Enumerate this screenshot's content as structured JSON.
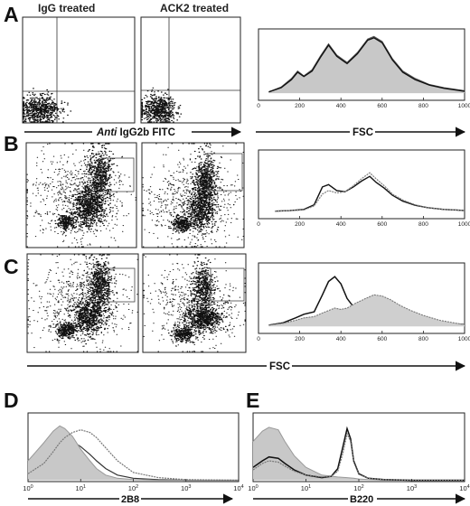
{
  "figure": {
    "panel_letters": [
      "A",
      "B",
      "C",
      "D",
      "E"
    ],
    "row_a": {
      "plot_titles": [
        "IgG treated",
        "ACK2 treated"
      ],
      "dotplot_axis_label_italic": "Anti",
      "dotplot_axis_label_rest": " IgG2b FITC",
      "histogram_axis_label": "FSC"
    },
    "row_c": {
      "axis_label": "FSC"
    },
    "fsc_ticks": [
      "0",
      "200",
      "400",
      "600",
      "800",
      "1000"
    ],
    "panel_d": {
      "xlabel": "2B8"
    },
    "panel_e": {
      "xlabel": "B220"
    },
    "log_ticks_base": "10",
    "log_ticks_exp": [
      "0",
      "1",
      "2",
      "3",
      "4"
    ]
  },
  "chart_data": [
    {
      "panel": "A",
      "type": "scatter",
      "title": "IgG treated",
      "xlabel": "Anti IgG2b FITC",
      "note": "events concentrated in lower-left quadrant"
    },
    {
      "panel": "A",
      "type": "scatter",
      "title": "ACK2 treated",
      "xlabel": "Anti IgG2b FITC",
      "note": "events concentrated in lower-left quadrant"
    },
    {
      "panel": "A",
      "type": "area",
      "xlabel": "FSC",
      "x_ticks": [
        0,
        200,
        400,
        600,
        800,
        1000
      ],
      "xlim": [
        0,
        1000
      ],
      "series": [
        {
          "x": [
            50,
            110,
            160,
            190,
            220,
            260,
            300,
            340,
            380,
            430,
            480,
            530,
            560,
            600,
            650,
            700,
            760,
            830,
            900,
            960,
            1000
          ],
          "values": [
            2,
            10,
            24,
            36,
            28,
            38,
            60,
            80,
            62,
            50,
            66,
            88,
            92,
            84,
            56,
            36,
            24,
            14,
            9,
            6,
            4
          ]
        },
        {
          "x": [
            50,
            110,
            160,
            190,
            220,
            260,
            300,
            340,
            380,
            430,
            480,
            530,
            560,
            600,
            650,
            700,
            760,
            830,
            900,
            960,
            1000
          ],
          "values": [
            2,
            9,
            22,
            34,
            27,
            36,
            58,
            78,
            60,
            48,
            64,
            86,
            90,
            82,
            54,
            34,
            22,
            13,
            8,
            5,
            3
          ]
        }
      ]
    },
    {
      "panel": "B",
      "type": "scatter",
      "note": "FSC vs fluorescence, gated rectangle upper-right"
    },
    {
      "panel": "B",
      "type": "scatter",
      "note": "FSC vs fluorescence, gated rectangle upper-right"
    },
    {
      "panel": "B",
      "type": "line",
      "x_ticks": [
        0,
        200,
        400,
        600,
        800,
        1000
      ],
      "xlim": [
        0,
        1000
      ],
      "series": [
        {
          "x": [
            80,
            150,
            220,
            270,
            310,
            340,
            380,
            420,
            460,
            500,
            540,
            570,
            610,
            650,
            700,
            760,
            820,
            900,
            960,
            1000
          ],
          "values": [
            1,
            2,
            4,
            12,
            42,
            46,
            36,
            34,
            42,
            52,
            60,
            50,
            40,
            28,
            18,
            11,
            7,
            4,
            3,
            2
          ]
        },
        {
          "x": [
            80,
            150,
            220,
            270,
            310,
            340,
            380,
            420,
            460,
            500,
            540,
            570,
            610,
            650,
            700,
            760,
            820,
            900,
            960,
            1000
          ],
          "values": [
            1,
            2,
            3,
            10,
            30,
            36,
            32,
            34,
            44,
            56,
            66,
            56,
            44,
            30,
            20,
            12,
            7,
            4,
            3,
            2
          ]
        }
      ]
    },
    {
      "panel": "C",
      "type": "scatter",
      "xlabel": "FSC",
      "note": "larger gated rectangle"
    },
    {
      "panel": "C",
      "type": "scatter",
      "xlabel": "FSC",
      "note": "larger gated rectangle"
    },
    {
      "panel": "C",
      "type": "area",
      "x_ticks": [
        0,
        200,
        400,
        600,
        800,
        1000
      ],
      "xlim": [
        0,
        1000
      ],
      "series": [
        {
          "x": [
            50,
            120,
            180,
            220,
            270,
            310,
            340,
            370,
            400,
            430,
            470,
            520,
            560,
            600,
            640,
            690,
            740,
            800,
            880,
            960,
            1000
          ],
          "values": [
            2,
            6,
            14,
            20,
            24,
            52,
            74,
            82,
            70,
            46,
            28,
            22,
            20,
            18,
            15,
            12,
            10,
            8,
            6,
            4,
            3
          ]
        },
        {
          "x": [
            50,
            120,
            180,
            220,
            270,
            310,
            340,
            370,
            400,
            430,
            470,
            520,
            560,
            600,
            640,
            690,
            740,
            800,
            880,
            960,
            1000
          ],
          "values": [
            2,
            5,
            10,
            14,
            16,
            22,
            26,
            30,
            28,
            30,
            38,
            46,
            52,
            50,
            44,
            34,
            26,
            18,
            10,
            5,
            3
          ]
        }
      ]
    },
    {
      "panel": "D",
      "type": "area",
      "xlabel": "2B8",
      "x_scale": "log",
      "xlim": [
        1,
        10000
      ],
      "x_ticks": [
        "10^0",
        "10^1",
        "10^2",
        "10^3",
        "10^4"
      ],
      "series": [
        {
          "x": [
            1,
            2,
            3,
            4,
            5,
            7,
            10,
            15,
            20,
            30,
            50,
            100,
            300,
            1000,
            10000
          ],
          "values": [
            24,
            44,
            56,
            62,
            64,
            60,
            52,
            40,
            30,
            18,
            8,
            3,
            1,
            0,
            0
          ]
        },
        {
          "x": [
            1,
            2,
            3,
            4,
            5,
            7,
            10,
            15,
            20,
            30,
            50,
            100,
            300,
            1000,
            10000
          ],
          "values": [
            30,
            58,
            76,
            84,
            80,
            68,
            48,
            30,
            18,
            8,
            3,
            1,
            0,
            0,
            0
          ]
        },
        {
          "x": [
            1,
            2,
            3,
            4,
            5,
            7,
            10,
            15,
            20,
            30,
            50,
            100,
            300,
            1000,
            10000
          ],
          "values": [
            10,
            26,
            44,
            58,
            66,
            74,
            78,
            74,
            66,
            50,
            30,
            12,
            4,
            1,
            0
          ]
        }
      ]
    },
    {
      "panel": "E",
      "type": "area",
      "xlabel": "B220",
      "x_scale": "log",
      "xlim": [
        1,
        10000
      ],
      "x_ticks": [
        "10^0",
        "10^1",
        "10^2",
        "10^3",
        "10^4"
      ],
      "series": [
        {
          "x": [
            1,
            1.5,
            2,
            3,
            4,
            6,
            10,
            20,
            40,
            60,
            80,
            100,
            150,
            300,
            1000,
            10000
          ],
          "values": [
            60,
            76,
            82,
            78,
            60,
            38,
            20,
            8,
            5,
            4,
            3,
            2,
            1,
            0,
            0,
            0
          ]
        },
        {
          "x": [
            1,
            1.5,
            2,
            3,
            4,
            6,
            10,
            20,
            30,
            40,
            50,
            60,
            70,
            80,
            100,
            150,
            300,
            1000,
            10000
          ],
          "values": [
            20,
            30,
            36,
            34,
            26,
            16,
            8,
            4,
            6,
            18,
            52,
            80,
            64,
            30,
            10,
            3,
            1,
            0,
            0
          ]
        },
        {
          "x": [
            1,
            1.5,
            2,
            3,
            4,
            6,
            10,
            20,
            30,
            40,
            50,
            60,
            70,
            80,
            100,
            150,
            300,
            1000,
            10000
          ],
          "values": [
            16,
            26,
            30,
            28,
            22,
            14,
            8,
            5,
            6,
            14,
            42,
            72,
            60,
            28,
            9,
            3,
            1,
            0,
            0
          ]
        }
      ]
    }
  ]
}
